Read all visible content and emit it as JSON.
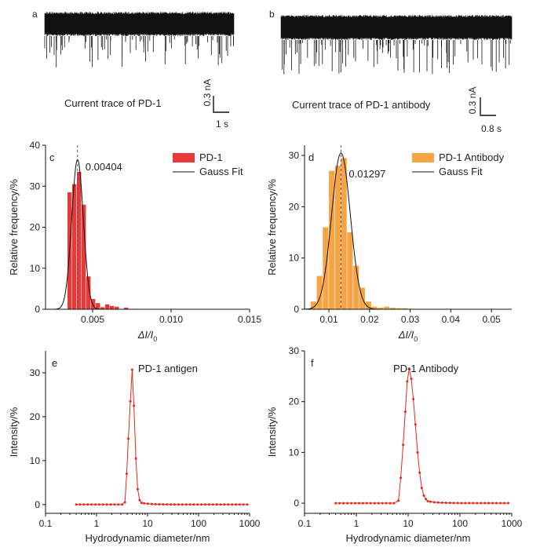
{
  "panels": {
    "a": {
      "letter": "a",
      "caption": "Current trace of PD-1",
      "scale_current": "0.3 nA",
      "scale_time": "1 s"
    },
    "b": {
      "letter": "b",
      "caption": "Current trace of PD-1 antibody",
      "scale_current": "0.3 nA",
      "scale_time": "0.8 s"
    }
  },
  "chart_data": [
    {
      "id": "a",
      "type": "line",
      "title": "",
      "subtitle": "",
      "description_text": "Current trace of PD-1",
      "scale_bar": {
        "current": "0.3 nA",
        "time": "1 s"
      },
      "series": [
        {
          "name": "",
          "color": "#111111"
        }
      ]
    },
    {
      "id": "b",
      "type": "line",
      "title": "",
      "subtitle": "",
      "description_text": "Current trace of PD-1 antibody",
      "scale_bar": {
        "current": "0.3 nA",
        "time": "0.8 s"
      },
      "series": [
        {
          "name": "",
          "color": "#111111"
        }
      ]
    },
    {
      "id": "c",
      "letter": "c",
      "type": "bar",
      "xlabel": "ΔI/I0",
      "ylabel": "Relative frequency/%",
      "xlim": [
        0.002,
        0.015
      ],
      "ylim": [
        0,
        40
      ],
      "xticks": [
        "0.005",
        "0.010",
        "0.015"
      ],
      "xtick_values": [
        0.005,
        0.01,
        0.015
      ],
      "yticks": [
        "0",
        "10",
        "20",
        "30",
        "40"
      ],
      "bin_width": 0.0003,
      "series": [
        {
          "name": "PD-1",
          "color": "#e8393a",
          "x": [
            0.00355,
            0.00385,
            0.00415,
            0.00445,
            0.00475,
            0.00505,
            0.00535,
            0.00565,
            0.00595,
            0.00625,
            0.00655,
            0.00715
          ],
          "values": [
            28.5,
            30.5,
            33.5,
            25.5,
            8,
            2.5,
            1.5,
            0.5,
            1.2,
            0.8,
            0.6,
            0.4
          ]
        },
        {
          "name": "Gauss Fit",
          "color": "#000000",
          "center": 0.00404,
          "peak": 36.5,
          "sigma": 0.00037
        }
      ],
      "annotation": "0.00404",
      "legend": "top-right"
    },
    {
      "id": "d",
      "letter": "d",
      "type": "bar",
      "xlabel": "ΔI/I0",
      "ylabel": "Relative frequency/%",
      "xlim": [
        0.004,
        0.055
      ],
      "ylim": [
        0,
        32
      ],
      "xticks": [
        "0.01",
        "0.02",
        "0.03",
        "0.04",
        "0.05"
      ],
      "xtick_values": [
        0.01,
        0.02,
        0.03,
        0.04,
        0.05
      ],
      "yticks": [
        "0",
        "10",
        "20",
        "30"
      ],
      "bin_width": 0.0015,
      "series": [
        {
          "name": "PD-1 Antibody",
          "color": "#f7a444",
          "x": [
            0.00625,
            0.00775,
            0.00925,
            0.01075,
            0.01225,
            0.01375,
            0.01525,
            0.01675,
            0.01825,
            0.01975,
            0.02125,
            0.02275,
            0.02425,
            0.02575,
            0.02725,
            0.02875
          ],
          "values": [
            1.5,
            6.5,
            16,
            27,
            28,
            29.5,
            15,
            8.5,
            4.2,
            1.5,
            0.5,
            0.3,
            0.5,
            0.3,
            0.2,
            0.2
          ]
        },
        {
          "name": "Gauss Fit",
          "color": "#000000",
          "center": 0.01297,
          "peak": 30.5,
          "sigma": 0.0023
        }
      ],
      "annotation": "0.01297",
      "legend": "top-right"
    },
    {
      "id": "e",
      "letter": "e",
      "type": "line",
      "xlabel": "Hydrodynamic diameter/nm",
      "ylabel": "Intensity/%",
      "xscale": "log",
      "xlim": [
        0.1,
        1000
      ],
      "ylim": [
        -2,
        35
      ],
      "xticks": [
        "0.1",
        "1",
        "10",
        "100",
        "1000"
      ],
      "xtick_values": [
        0.1,
        1,
        10,
        100,
        1000
      ],
      "yticks": [
        "0",
        "10",
        "20",
        "30"
      ],
      "ytick_values": [
        0,
        10,
        20,
        30
      ],
      "annotation": "PD-1 antigen",
      "series": [
        {
          "name": "",
          "color": "#e8261a",
          "x": [
            3.6,
            3.9,
            4.2,
            4.6,
            5.0,
            5.4,
            5.9,
            6.4,
            7.0,
            7.6
          ],
          "y": [
            0.5,
            7,
            15,
            23.5,
            30.7,
            22.5,
            10.5,
            3.5,
            1.0,
            0.4
          ]
        }
      ]
    },
    {
      "id": "f",
      "letter": "f",
      "type": "line",
      "xlabel": "Hydrodynamic diameter/nm",
      "ylabel": "Intensity/%",
      "xscale": "log",
      "xlim": [
        0.1,
        1000
      ],
      "ylim": [
        -2,
        30
      ],
      "xticks": [
        "0.1",
        "1",
        "10",
        "100",
        "1000"
      ],
      "xtick_values": [
        0.1,
        1,
        10,
        100,
        1000
      ],
      "yticks": [
        "0",
        "10",
        "20",
        "30"
      ],
      "ytick_values": [
        0,
        10,
        20,
        30
      ],
      "annotation": "PD-1 Antibody",
      "series": [
        {
          "name": "",
          "color": "#e8261a",
          "x": [
            6.5,
            7.2,
            8.0,
            8.8,
            9.6,
            10.5,
            11.5,
            12.6,
            13.8,
            15.2,
            16.7,
            18.3,
            20.1,
            22.0,
            24.0
          ],
          "y": [
            0.5,
            5,
            11.5,
            18,
            24,
            26.5,
            24.5,
            20.5,
            15.5,
            10,
            6,
            3,
            1.5,
            0.8,
            0.4
          ]
        }
      ]
    }
  ]
}
